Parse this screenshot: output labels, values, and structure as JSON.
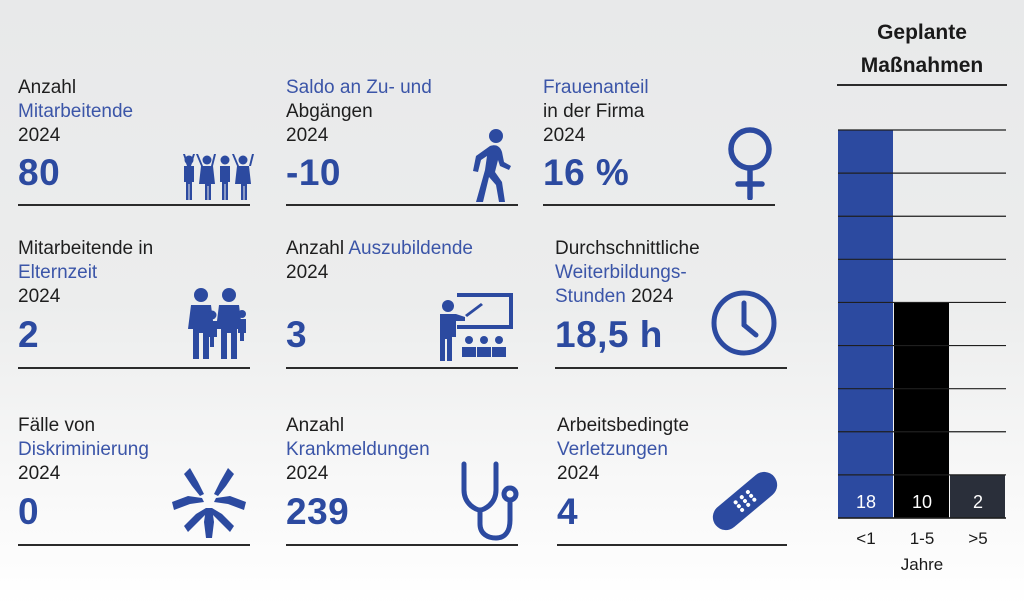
{
  "colors": {
    "accent": "#2c4aa0",
    "label_blue": "#3b55a8",
    "text": "#1e1e1e",
    "bar_1": "#2c4aa0",
    "bar_2": "#000000",
    "bar_3": "#2a2f3a"
  },
  "stats": [
    {
      "pre": "Anzahl",
      "blue": "Mitarbeitende",
      "post": "",
      "year": "2024",
      "value": "80",
      "icon": "people-group-icon"
    },
    {
      "pre": "",
      "blue": "Saldo an Zu- und",
      "post": "Abgängen",
      "year": "2024",
      "value": "-10",
      "icon": "walking-person-icon"
    },
    {
      "pre": "",
      "blue": "Frauenanteil",
      "post": "in der Firma",
      "year": "2024",
      "value": "16 %",
      "icon": "female-symbol-icon"
    },
    {
      "pre": "Mitarbeitende in",
      "blue": "Elternzeit",
      "post": "",
      "year": "2024",
      "value": "2",
      "icon": "family-icon"
    },
    {
      "pre": "Anzahl",
      "blue": "Auszubildende",
      "post": "",
      "year": "2024",
      "value": "3",
      "icon": "classroom-icon"
    },
    {
      "pre": "Durchschnittliche",
      "blue": "Weiterbildungs-",
      "post": "",
      "blue2": "Stunden",
      "year": "2024",
      "value": "18,5 h",
      "icon": "clock-icon"
    },
    {
      "pre": "Fälle von",
      "blue": "Diskriminierung",
      "post": "",
      "year": "2024",
      "value": "0",
      "icon": "hands-together-icon"
    },
    {
      "pre": "Anzahl",
      "blue": "Krankmeldungen",
      "post": "",
      "year": "2024",
      "value": "239",
      "icon": "stethoscope-icon"
    },
    {
      "pre": "Arbeitsbedingte",
      "blue": "Verletzungen",
      "post": "",
      "year": "2024",
      "value": "4",
      "icon": "bandage-icon"
    }
  ],
  "chart_title": [
    "Geplante",
    "Maßnahmen"
  ],
  "chart_data": {
    "type": "bar",
    "title": "Geplante Maßnahmen",
    "categories": [
      "<1",
      "1-5",
      ">5"
    ],
    "values": [
      18,
      10,
      2
    ],
    "value_labels": [
      "18",
      "10",
      "2"
    ],
    "xlabel": "Jahre",
    "ylabel": "",
    "ylim": [
      0,
      18
    ],
    "grid": true,
    "legend": "none",
    "bar_colors": [
      "#2c4aa0",
      "#000000",
      "#2a2f3a"
    ]
  }
}
